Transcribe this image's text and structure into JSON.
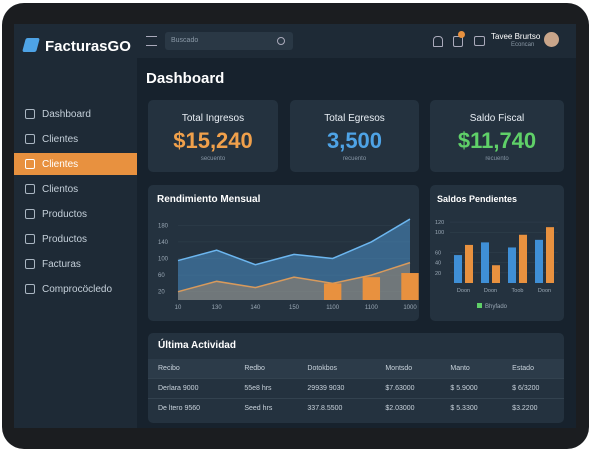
{
  "brand": "FacturasGO",
  "search": "Buscado",
  "user": {
    "name": "Tavee Brurtso",
    "role": "Econcan"
  },
  "menu": [
    "Dashboard",
    "Clientes",
    "Clientes",
    "Clientos",
    "Productos",
    "Productos",
    "Facturas",
    "Comprocöcledo"
  ],
  "active_menu": 2,
  "page_title": "Dashboard",
  "cards": [
    {
      "title": "Total Ingresos",
      "value": "$15,240",
      "note": "secuento",
      "color": "#f0a04b"
    },
    {
      "title": "Total Egresos",
      "value": "3,500",
      "note": "recuento",
      "color": "#4ea3e6"
    },
    {
      "title": "Saldo Fiscal",
      "value": "$11,740",
      "note": "recuento",
      "color": "#5fd068"
    }
  ],
  "rendimiento": {
    "type": "area",
    "title": "Rendimiento Mensual",
    "categories": [
      "10",
      "130",
      "140",
      "150",
      "1100",
      "1100",
      "1000"
    ],
    "ylim": [
      0,
      200
    ],
    "yticks": [
      180,
      140,
      100,
      60,
      20
    ],
    "series": [
      {
        "color": "#4a8fc9",
        "values": [
          95,
          120,
          85,
          110,
          100,
          140,
          195
        ]
      },
      {
        "color": "#d89a5c",
        "values": [
          20,
          45,
          30,
          55,
          40,
          60,
          90
        ]
      }
    ],
    "bars": {
      "color": "#e8913f",
      "values": [
        null,
        null,
        null,
        null,
        40,
        55,
        65
      ]
    }
  },
  "saldos": {
    "type": "bar",
    "title": "Saldos Pendientes",
    "categories": [
      "Doon",
      "Doon",
      "Toob",
      "Doon"
    ],
    "ylim": [
      0,
      130
    ],
    "yticks": [
      120,
      100,
      60,
      40,
      20
    ],
    "series": [
      {
        "color": "#3f8fd6",
        "values": [
          55,
          80,
          70,
          85
        ]
      },
      {
        "color": "#e8913f",
        "values": [
          75,
          35,
          95,
          110
        ]
      }
    ],
    "legend": {
      "label": "Bhyfado",
      "color": "#5fd068"
    }
  },
  "table": {
    "title": "Última Actividad",
    "headers": [
      "Recibo",
      "Redbo",
      "Dotokbos",
      "Montsdo",
      "Manto",
      "Estado"
    ],
    "rows": [
      [
        "Derlara 9000",
        "55e8 hrs",
        "29939 9030",
        "$7.63000",
        "$ 5.9000",
        "$ 6/3200"
      ],
      [
        "De ltero 9560",
        "Seed hrs",
        "337.8.5500",
        "$2.03000",
        "$ 5.3300",
        "$3.2200"
      ]
    ]
  }
}
